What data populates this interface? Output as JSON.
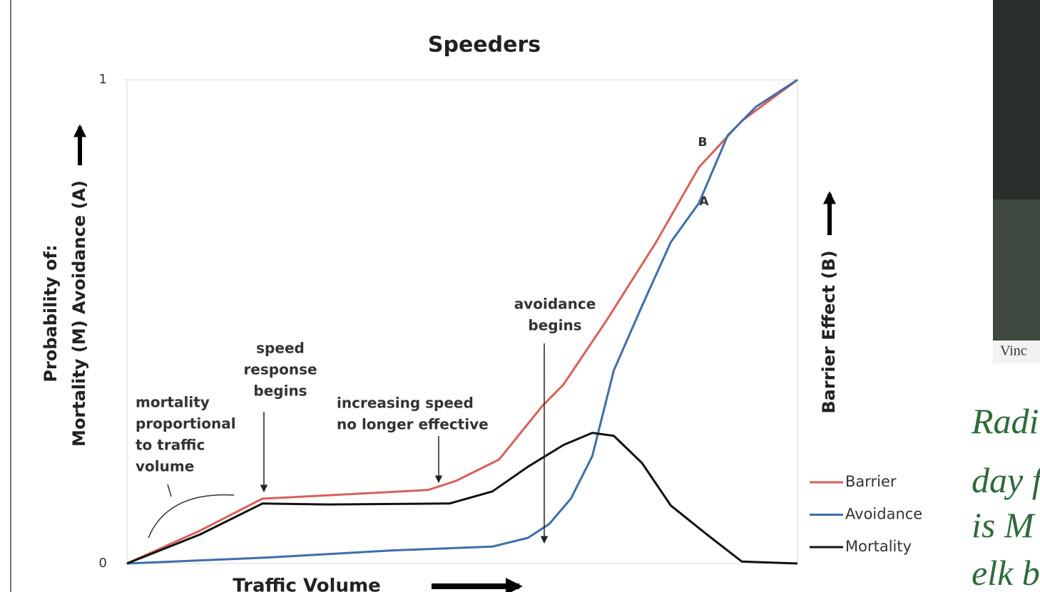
{
  "chart_data": {
    "type": "line",
    "title": "Speeders",
    "y_label_lines": [
      "Probability of:",
      "Mortality (M)  Avoidance (A)"
    ],
    "y2_label": "Barrier Effect (B)",
    "x_label": "Traffic Volume",
    "xlim": [
      0,
      1
    ],
    "ylim": [
      0,
      1
    ],
    "yticks": [
      0,
      1
    ],
    "series": [
      {
        "name": "Barrier",
        "color": "#d9605a",
        "x": [
          0,
          0.109,
          0.202,
          0.3,
          0.449,
          0.491,
          0.555,
          0.619,
          0.651,
          0.715,
          0.789,
          0.853,
          0.917,
          1
        ],
        "values": [
          0,
          0.068,
          0.134,
          0.141,
          0.152,
          0.171,
          0.215,
          0.325,
          0.37,
          0.502,
          0.664,
          0.819,
          0.915,
          1
        ]
      },
      {
        "name": "Avoidance",
        "color": "#3f6ea8",
        "x": [
          0,
          0.204,
          0.396,
          0.545,
          0.598,
          0.63,
          0.662,
          0.694,
          0.726,
          0.768,
          0.811,
          0.853,
          0.896,
          0.938,
          1
        ],
        "values": [
          0,
          0.012,
          0.027,
          0.035,
          0.053,
          0.082,
          0.134,
          0.222,
          0.399,
          0.532,
          0.664,
          0.745,
          0.885,
          0.944,
          1
        ]
      },
      {
        "name": "Mortality",
        "color": "#111111",
        "x": [
          0,
          0.109,
          0.202,
          0.3,
          0.481,
          0.545,
          0.598,
          0.651,
          0.694,
          0.726,
          0.768,
          0.811,
          0.864,
          0.917,
          1
        ],
        "values": [
          0,
          0.06,
          0.124,
          0.122,
          0.124,
          0.149,
          0.2,
          0.245,
          0.27,
          0.264,
          0.208,
          0.12,
          0.061,
          0.004,
          0
        ]
      }
    ],
    "curve_labels": [
      "B",
      "A"
    ],
    "annotations": [
      [
        "mortality",
        "proportional",
        "to traffic",
        "volume"
      ],
      [
        "speed",
        "response",
        "begins"
      ],
      [
        "increasing speed",
        "no longer effective"
      ],
      [
        "avoidance",
        "begins"
      ]
    ]
  },
  "slide": {
    "photo_credit": "Vinc",
    "caption_lines": [
      "Radi",
      "day f",
      "is M",
      "elk b"
    ]
  }
}
